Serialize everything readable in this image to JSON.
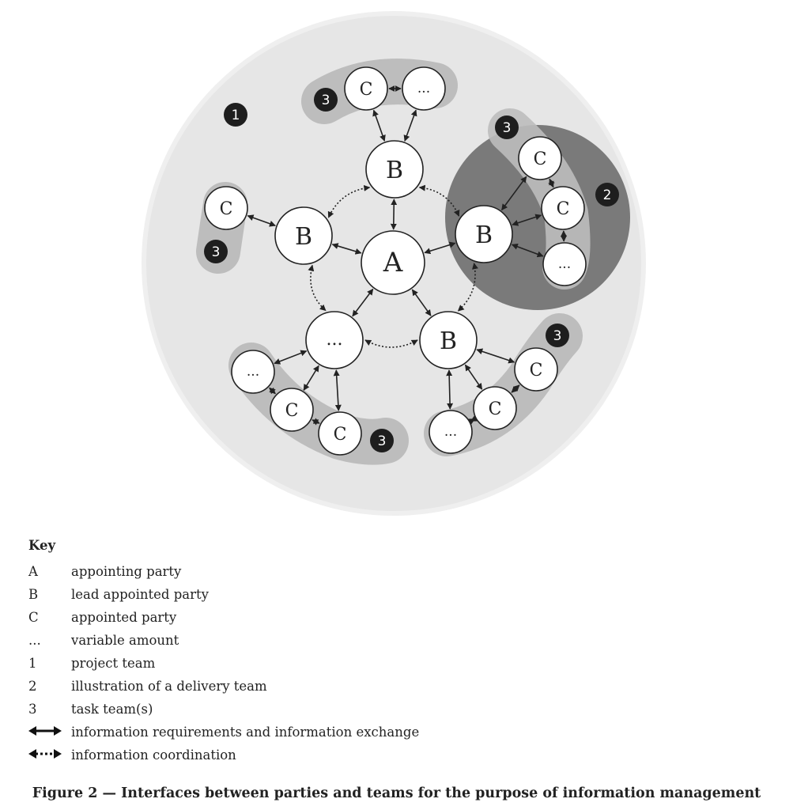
{
  "diagram": {
    "nodes": [
      {
        "id": "A",
        "label": "A"
      },
      {
        "id": "Btop",
        "label": "B"
      },
      {
        "id": "Bleft",
        "label": "B"
      },
      {
        "id": "Bright",
        "label": "B"
      },
      {
        "id": "dotsBL",
        "label": "..."
      },
      {
        "id": "BBR",
        "label": "B"
      },
      {
        "id": "Ctop",
        "label": "C"
      },
      {
        "id": "dotsTop",
        "label": "..."
      },
      {
        "id": "Cleft",
        "label": "C"
      },
      {
        "id": "C1r",
        "label": "C"
      },
      {
        "id": "C2r",
        "label": "C"
      },
      {
        "id": "dotsR",
        "label": "..."
      },
      {
        "id": "dotsBL2",
        "label": "..."
      },
      {
        "id": "CBL1",
        "label": "C"
      },
      {
        "id": "CBL2",
        "label": "C"
      },
      {
        "id": "CBR1",
        "label": "C"
      },
      {
        "id": "CBR2",
        "label": "C"
      },
      {
        "id": "dotsBR",
        "label": "..."
      }
    ],
    "badges": [
      {
        "id": "project",
        "label": "1"
      },
      {
        "id": "delivery",
        "label": "2"
      },
      {
        "id": "taskTop",
        "label": "3"
      },
      {
        "id": "taskLeft",
        "label": "3"
      },
      {
        "id": "taskRight",
        "label": "3"
      },
      {
        "id": "taskBL",
        "label": "3"
      },
      {
        "id": "taskBR",
        "label": "3"
      }
    ],
    "colors": {
      "project_team": "#e6e6e6",
      "task_team": "#bdbdbd",
      "delivery_team": "#7a7a7a",
      "badge": "#1e1e1e",
      "node": "#ffffff"
    }
  },
  "key": {
    "title": "Key",
    "items": [
      {
        "symbol": "A",
        "text": "appointing party"
      },
      {
        "symbol": "B",
        "text": "lead appointed party"
      },
      {
        "symbol": "C",
        "text": "appointed party"
      },
      {
        "symbol": "...",
        "text": "variable amount"
      },
      {
        "symbol": "1",
        "text": "project team"
      },
      {
        "symbol": "2",
        "text": "illustration of a delivery team"
      },
      {
        "symbol": "3",
        "text": "task team(s)"
      },
      {
        "symbol": "solid-double-arrow-icon",
        "text": "information requirements and information exchange"
      },
      {
        "symbol": "dotted-double-arrow-icon",
        "text": "information coordination"
      }
    ]
  },
  "caption": "Figure 2 — Interfaces between parties and teams for the purpose of information management"
}
